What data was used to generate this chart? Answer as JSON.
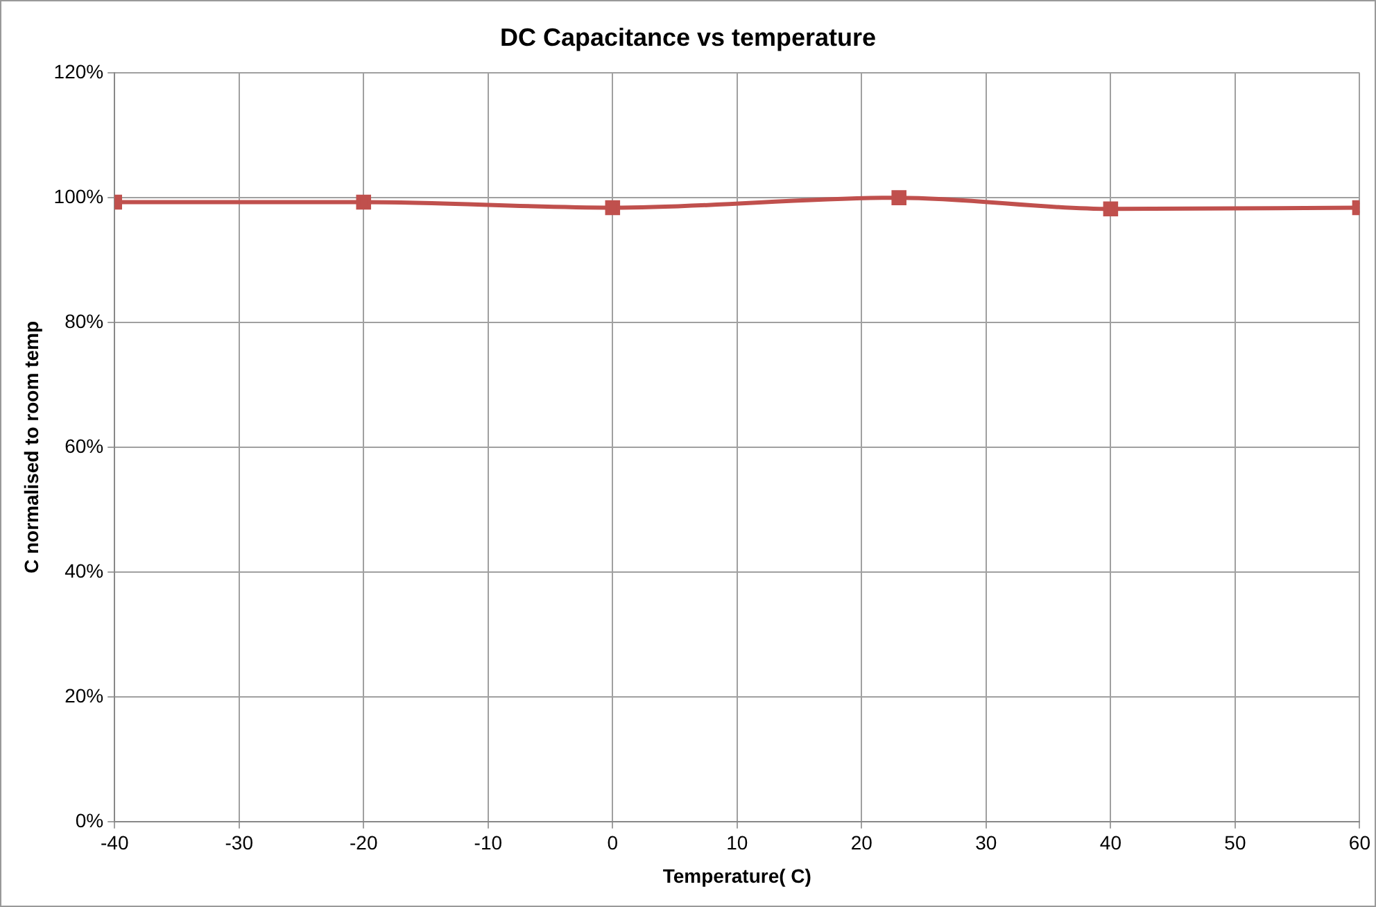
{
  "chart_data": {
    "type": "line",
    "title": "DC Capacitance vs temperature",
    "xlabel": "Temperature( C)",
    "ylabel": "C normalised to room temp",
    "x": [
      -40,
      -20,
      0,
      23,
      40,
      60
    ],
    "series": [
      {
        "color": "#c0504d",
        "values": [
          0.993,
          0.993,
          0.984,
          1.0,
          0.982,
          0.984
        ]
      }
    ],
    "xlim": [
      -40,
      60
    ],
    "xticks": [
      -40,
      -30,
      -20,
      -10,
      0,
      10,
      20,
      30,
      40,
      50,
      60
    ],
    "ylim": [
      0,
      1.2
    ],
    "yticks": [
      {
        "value": 0,
        "label": "0%"
      },
      {
        "value": 0.2,
        "label": "20%"
      },
      {
        "value": 0.4,
        "label": "40%"
      },
      {
        "value": 0.6,
        "label": "60%"
      },
      {
        "value": 0.8,
        "label": "80%"
      },
      {
        "value": 1.0,
        "label": "100%"
      },
      {
        "value": 1.2,
        "label": "120%"
      }
    ],
    "grid": true,
    "legend": false,
    "marker": "square",
    "line_style": "solid"
  }
}
